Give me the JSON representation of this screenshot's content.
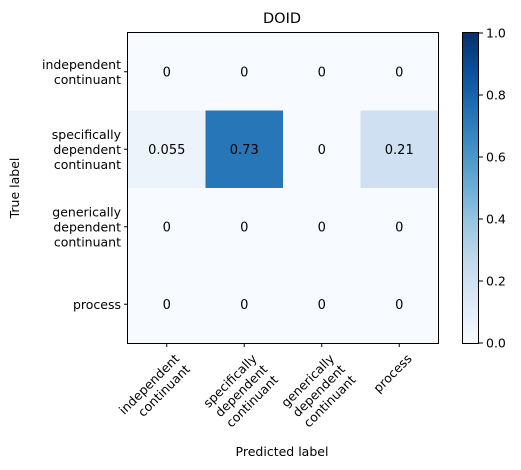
{
  "chart_data": {
    "type": "heatmap",
    "title": "DOID",
    "xlabel": "Predicted label",
    "ylabel": "True label",
    "x_categories": [
      [
        "independent",
        "continuant"
      ],
      [
        "specifically",
        "dependent",
        "continuant"
      ],
      [
        "generically",
        "dependent",
        "continuant"
      ],
      [
        "process"
      ]
    ],
    "y_categories": [
      [
        "independent",
        "continuant"
      ],
      [
        "specifically",
        "dependent",
        "continuant"
      ],
      [
        "generically",
        "dependent",
        "continuant"
      ],
      [
        "process"
      ]
    ],
    "matrix": [
      [
        0,
        0,
        0,
        0
      ],
      [
        0.055,
        0.73,
        0,
        0.21
      ],
      [
        0,
        0,
        0,
        0
      ],
      [
        0,
        0,
        0,
        0
      ]
    ],
    "cell_labels": [
      [
        "0",
        "0",
        "0",
        "0"
      ],
      [
        "0.055",
        "0.73",
        "0",
        "0.21"
      ],
      [
        "0",
        "0",
        "0",
        "0"
      ],
      [
        "0",
        "0",
        "0",
        "0"
      ]
    ],
    "colormap": "Blues",
    "colorbar": {
      "range": [
        0.0,
        1.0
      ],
      "ticks": [
        0.0,
        0.2,
        0.4,
        0.6,
        0.8,
        1.0
      ],
      "tick_labels": [
        "0.0",
        "0.2",
        "0.4",
        "0.6",
        "0.8",
        "1.0"
      ]
    },
    "x_tick_rotation_deg": 45,
    "grid": false
  }
}
